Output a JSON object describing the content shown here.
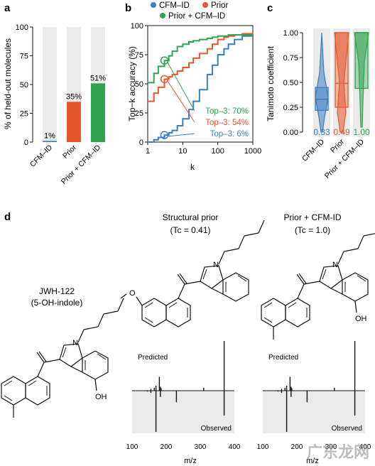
{
  "panels": {
    "a": {
      "letter": "a"
    },
    "b": {
      "letter": "b"
    },
    "c": {
      "letter": "c"
    },
    "d": {
      "letter": "d"
    }
  },
  "colors": {
    "blue": "#3a7fc1",
    "orange": "#e8572b",
    "green": "#2fa44f",
    "gray_bg": "#ebebeb"
  },
  "chart_data": [
    {
      "type": "bar",
      "panel": "a",
      "ylabel": "% of held-out molecules",
      "categories": [
        "CFM–ID",
        "Prior",
        "Prior + CFM–ID"
      ],
      "values": [
        1,
        35,
        51
      ],
      "labels": [
        "1%",
        "35%",
        "51%"
      ],
      "ylim": [
        0,
        100
      ],
      "yticks": [
        0,
        25,
        50,
        75,
        100
      ],
      "colors": [
        "#3a7fc1",
        "#e8572b",
        "#2fa44f"
      ]
    },
    {
      "type": "line",
      "panel": "b",
      "xlabel": "k",
      "ylabel": "Top−k accuracy (%)",
      "xscale": "log",
      "xlim": [
        1,
        1000
      ],
      "ylim": [
        0,
        100
      ],
      "xticks": [
        "1",
        "10",
        "100",
        "1000"
      ],
      "yticks": [
        0,
        25,
        50,
        75,
        100
      ],
      "legend": [
        "CFM–ID",
        "Prior",
        "Prior + CFM–ID"
      ],
      "series": [
        {
          "name": "CFM–ID",
          "color": "#3a7fc1",
          "x": [
            1,
            1.5,
            2,
            3,
            4,
            5,
            7,
            10,
            15,
            20,
            30,
            50,
            70,
            100,
            150,
            200,
            300,
            500,
            1000
          ],
          "y": [
            0,
            2,
            4,
            6,
            8,
            10,
            14,
            20,
            28,
            35,
            45,
            58,
            66,
            75,
            80,
            84,
            88,
            91,
            92
          ]
        },
        {
          "name": "Prior",
          "color": "#e8572b",
          "x": [
            1,
            1.5,
            2,
            3,
            4,
            5,
            7,
            10,
            15,
            20,
            30,
            50,
            70,
            100,
            150,
            200,
            300,
            500,
            1000
          ],
          "y": [
            35,
            42,
            47,
            54,
            56,
            58,
            61,
            64,
            68,
            72,
            76,
            80,
            84,
            88,
            90,
            91,
            92,
            93,
            93
          ]
        },
        {
          "name": "Prior + CFM–ID",
          "color": "#2fa44f",
          "x": [
            1,
            1.5,
            2,
            3,
            4,
            5,
            7,
            10,
            15,
            20,
            30,
            50,
            70,
            100,
            150,
            200,
            300,
            500,
            1000
          ],
          "y": [
            51,
            59,
            65,
            70,
            74,
            78,
            82,
            84,
            86,
            87,
            88,
            89,
            90,
            91,
            91,
            92,
            92,
            92,
            92
          ]
        }
      ],
      "annotations": [
        {
          "text": "Top–3: 70%",
          "series": "Prior + CFM–ID",
          "k": 3,
          "value": 70
        },
        {
          "text": "Top–3: 54%",
          "series": "Prior",
          "k": 3,
          "value": 54
        },
        {
          "text": "Top–3: 6%",
          "series": "CFM–ID",
          "k": 3,
          "value": 6
        }
      ]
    },
    {
      "type": "violin",
      "panel": "c",
      "ylabel": "Tanimoto coefficient",
      "categories": [
        "CFM–ID",
        "Prior",
        "Prior + CFM–ID"
      ],
      "ylim": [
        0,
        1
      ],
      "yticks": [
        "0.00",
        "0.25",
        "0.50",
        "0.75",
        "1.00"
      ],
      "medians": [
        0.33,
        0.49,
        1.0
      ],
      "median_labels": [
        "0.33",
        "0.49",
        "1.00"
      ],
      "q1": [
        0.22,
        0.25,
        0.44
      ],
      "q3": [
        0.45,
        1.0,
        1.0
      ],
      "colors": [
        "#3a7fc1",
        "#e8572b",
        "#2fa44f"
      ]
    },
    {
      "type": "bar",
      "panel": "d-spectrum-1",
      "xlabel": "m/z",
      "xlim": [
        100,
        400
      ],
      "xticks": [
        "100",
        "200",
        "300",
        "400"
      ],
      "predicted_label": "Predicted",
      "observed_label": "Observed",
      "predicted": [
        [
          155,
          0.04
        ],
        [
          165,
          0.06
        ],
        [
          170,
          0.1
        ],
        [
          180,
          0.28
        ],
        [
          183,
          0.08
        ],
        [
          185,
          0.05
        ],
        [
          310,
          0.06
        ],
        [
          370,
          1.0
        ]
      ],
      "observed": [
        [
          145,
          0.02
        ],
        [
          155,
          0.05
        ],
        [
          170,
          1.0
        ],
        [
          183,
          0.15
        ],
        [
          230,
          0.28
        ],
        [
          370,
          0.6
        ]
      ]
    },
    {
      "type": "bar",
      "panel": "d-spectrum-2",
      "xlabel": "m/z",
      "xlim": [
        100,
        400
      ],
      "xticks": [
        "100",
        "200",
        "300",
        "400"
      ],
      "predicted_label": "Predicted",
      "observed_label": "Observed",
      "predicted": [
        [
          155,
          0.04
        ],
        [
          165,
          0.06
        ],
        [
          170,
          0.1
        ],
        [
          180,
          0.28
        ],
        [
          183,
          0.08
        ],
        [
          185,
          0.05
        ],
        [
          310,
          0.06
        ],
        [
          370,
          1.0
        ]
      ],
      "observed": [
        [
          145,
          0.02
        ],
        [
          155,
          0.05
        ],
        [
          170,
          1.0
        ],
        [
          183,
          0.15
        ],
        [
          230,
          0.28
        ],
        [
          370,
          0.6
        ]
      ]
    }
  ],
  "molecules": {
    "query": {
      "name": "JWH-122",
      "sub": "(5-OH-indole)",
      "oh": "OH",
      "n": "N"
    },
    "prior": {
      "title": "Structural prior",
      "tc": "(Tc = 0.41)",
      "n": "N"
    },
    "combined": {
      "title": "Prior + CFM-ID",
      "tc": "(Tc = 1.0)",
      "oh": "OH",
      "n": "N"
    }
  },
  "watermark": "广东龙网"
}
